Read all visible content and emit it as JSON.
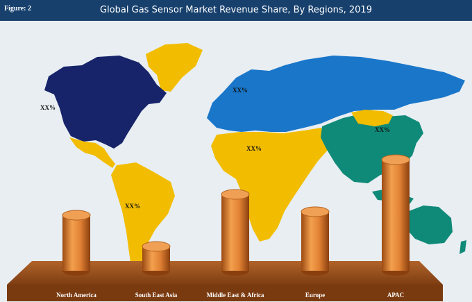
{
  "figure_label": "Figure: 2",
  "colors": {
    "header": "#17406d",
    "ocean": "#e8eef2",
    "north_america": "#17246a",
    "south_america_africa": "#f2bd00",
    "europe_russia": "#1a76c9",
    "asia_pacific": "#108a78",
    "bar": "#e98a3a",
    "platform": "#9b4f1c"
  },
  "map_labels": [
    {
      "region": "North America",
      "text": "XX%"
    },
    {
      "region": "Europe",
      "text": "XX%"
    },
    {
      "region": "Middle East & Africa",
      "text": "XX%"
    },
    {
      "region": "South America",
      "text": "XX%"
    },
    {
      "region": "APAC",
      "text": "XX%"
    }
  ],
  "chart_data": {
    "type": "bar",
    "title": "Global Gas Sensor Market Revenue Share, By Regions, 2019",
    "categories": [
      "North America",
      "South East Asia",
      "Middle East & Africa",
      "Europe",
      "APAC"
    ],
    "values": [
      80,
      35,
      110,
      85,
      160
    ],
    "values_note": "Bar heights are relative only; the chart prints no axis or numbers",
    "ylim": [
      0,
      175
    ],
    "xlabel": "",
    "ylabel": "",
    "grid": false,
    "legend": "none"
  }
}
